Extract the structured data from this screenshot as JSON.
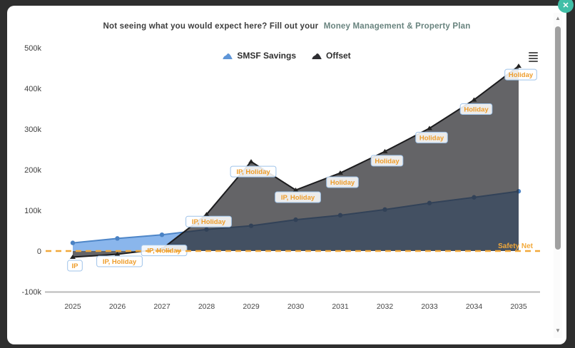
{
  "modal": {
    "close_label": "✕",
    "note": {
      "text": "Not seeing what you would expect here? Fill out your",
      "link_text": "Money Management & Property Plan"
    }
  },
  "legend": [
    {
      "name": "SMSF Savings",
      "color": "#5f96d8"
    },
    {
      "name": "Offset",
      "color": "#2e2e33"
    }
  ],
  "scrollbar": {
    "up_icon": "▲",
    "down_icon": "▼"
  },
  "menu_icon": "hamburger-menu",
  "chart_data": {
    "type": "area",
    "x": [
      2025,
      2026,
      2027,
      2028,
      2029,
      2030,
      2031,
      2032,
      2033,
      2034,
      2035
    ],
    "series": [
      {
        "name": "SMSF Savings",
        "marker": "circle",
        "line_color": "#4e86c8",
        "marker_color": "#4a82c4",
        "fill_color": "rgba(128,176,234,0.92)",
        "values_k": [
          20,
          31,
          40,
          53,
          62,
          77,
          88,
          102,
          118,
          132,
          147
        ]
      },
      {
        "name": "Offset",
        "marker": "triangle",
        "line_color": "#1c1c1e",
        "marker_color": "#222222",
        "fill_color": "rgba(40,40,45,0.72)",
        "values_k": [
          -15,
          -8,
          5,
          90,
          220,
          150,
          192,
          245,
          302,
          372,
          455
        ]
      }
    ],
    "point_labels": [
      "IP",
      "IP, Holiday",
      "IP, Holiday",
      "IP, Holiday",
      "IP, Holiday",
      "IP, Holiday",
      "Holiday",
      "Holiday",
      "Holiday",
      "Holiday",
      "Holiday"
    ],
    "point_label_style": {
      "text_color": "#ee9d2b",
      "border_color": "#9fc3e9"
    },
    "yticks": [
      {
        "label": "500k",
        "value_k": 500
      },
      {
        "label": "400k",
        "value_k": 400
      },
      {
        "label": "300k",
        "value_k": 300
      },
      {
        "label": "200k",
        "value_k": 200
      },
      {
        "label": "100k",
        "value_k": 100
      },
      {
        "label": "0",
        "value_k": 0
      },
      {
        "label": "-100k",
        "value_k": -100
      }
    ],
    "ylim_k": [
      -100,
      500
    ],
    "grid": false,
    "legend_position": "top-center",
    "plot_line": {
      "label": "Safety Net",
      "value_k": 0,
      "color": "#f2a93b",
      "dash": true
    },
    "title": "",
    "xlabel": "",
    "ylabel": ""
  }
}
